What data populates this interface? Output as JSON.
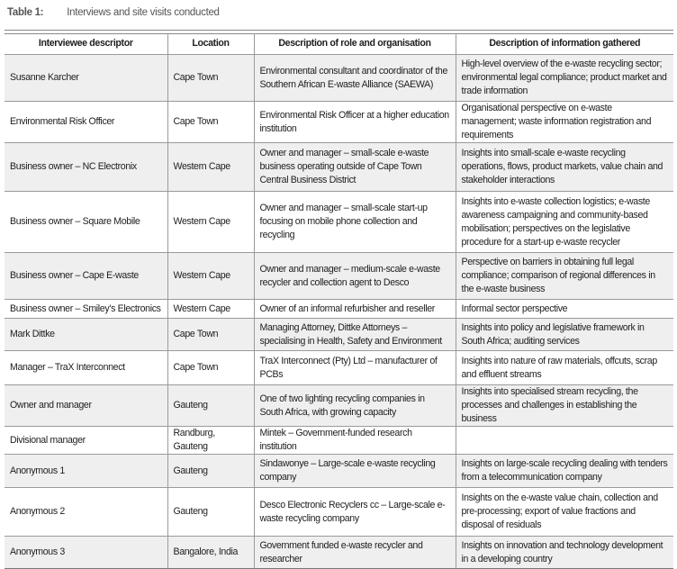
{
  "caption": {
    "label": "Table 1:",
    "title": "Interviews and site visits conducted"
  },
  "headers": [
    "Interviewee descriptor",
    "Location",
    "Description of role and organisation",
    "Description of information gathered"
  ],
  "rows": [
    {
      "descriptor": "Susanne Karcher",
      "location": "Cape Town",
      "role": "Environmental consultant and coordinator of the Southern African E-waste Alliance (SAEWA)",
      "info": "High-level overview of the e-waste recycling sector; environmental legal compliance; product market and trade information"
    },
    {
      "descriptor": "Environmental Risk Officer",
      "location": "Cape Town",
      "role": "Environmental Risk Officer at a higher education institution",
      "info": "Organisational perspective on e-waste management; waste information registration and requirements"
    },
    {
      "descriptor": "Business owner – NC Electronix",
      "location": "Western Cape",
      "role": "Owner and manager – small-scale e-waste business operating outside of Cape Town Central Business District",
      "info": "Insights into small-scale e-waste recycling operations, flows, product markets, value chain and stakeholder interactions"
    },
    {
      "descriptor": "Business owner – Square Mobile",
      "location": "Western Cape",
      "role": "Owner and manager – small-scale start-up focusing on mobile phone collection and recycling",
      "info": "Insights into e-waste collection logistics; e-waste awareness campaigning and community-based mobilisation; perspectives on the legislative procedure for a start-up e-waste recycler"
    },
    {
      "descriptor": "Business owner – Cape E-waste",
      "location": "Western Cape",
      "role": "Owner and manager – medium-scale e-waste recycler and collection agent to Desco",
      "info": "Perspective on barriers in obtaining full legal compliance; comparison of regional differences in the e-waste business"
    },
    {
      "descriptor": "Business owner – Smiley’s Electronics",
      "location": "Western Cape",
      "role": "Owner of an informal refurbisher and reseller",
      "info": "Informal sector perspective"
    },
    {
      "descriptor": "Mark Dittke",
      "location": "Cape Town",
      "role": "Managing Attorney, Dittke Attorneys – specialising in Health, Safety and Environment",
      "info": "Insights into policy and legislative framework in South Africa; auditing services"
    },
    {
      "descriptor": "Manager – TraX Interconnect",
      "location": "Cape Town",
      "role": "TraX Interconnect (Pty) Ltd – manufacturer of PCBs",
      "info": "Insights into nature of raw materials, offcuts, scrap and effluent streams"
    },
    {
      "descriptor": "Owner and manager",
      "location": "Gauteng",
      "role": "One of two lighting recycling companies in South Africa, with growing capacity",
      "info": "Insights into specialised stream recycling, the processes and challenges in establishing the business"
    },
    {
      "descriptor": "Divisional manager",
      "location": "Randburg, Gauteng",
      "role": "Mintek – Government-funded research institution",
      "info": ""
    },
    {
      "descriptor": "Anonymous 1",
      "location": "Gauteng",
      "role": "Sindawonye – Large-scale e-waste recycling company",
      "info": "Insights on large-scale recycling dealing with tenders from a telecommunication company"
    },
    {
      "descriptor": "Anonymous 2",
      "location": "Gauteng",
      "role": "Desco Electronic Recyclers cc – Large-scale e-waste recycling company",
      "info": "Insights on the e-waste value chain, collection and pre-processing; export of value fractions and disposal of residuals"
    },
    {
      "descriptor": "Anonymous 3",
      "location": "Bangalore, India",
      "role": "Government funded e-waste recycler and researcher",
      "info": "Insights on innovation and technology development in a developing country"
    }
  ]
}
